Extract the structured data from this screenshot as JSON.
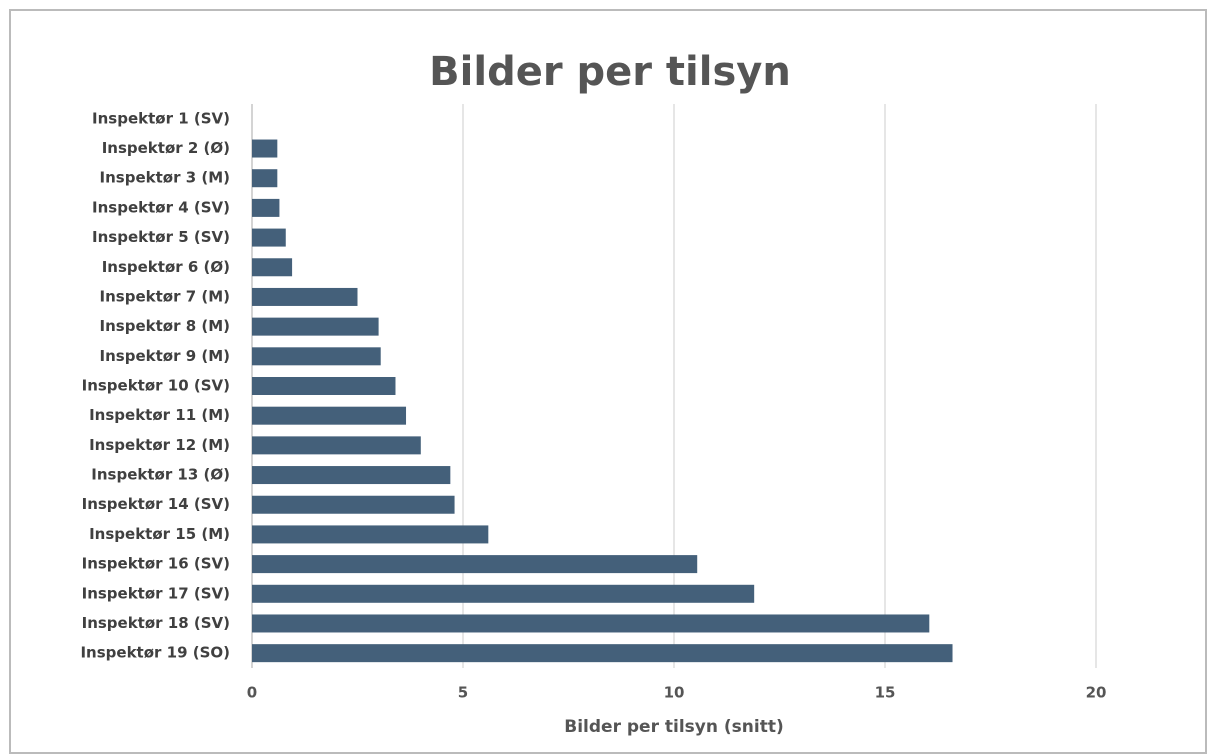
{
  "chart_data": {
    "type": "bar",
    "orientation": "horizontal",
    "title": "Bilder per tilsyn",
    "x_label": "Bilder per tilsyn (snitt)",
    "categories": [
      "Inspektør 1 (SV)",
      "Inspektør 2 (Ø)",
      "Inspektør 3 (M)",
      "Inspektør 4 (SV)",
      "Inspektør 5 (SV)",
      "Inspektør 6 (Ø)",
      "Inspektør 7 (M)",
      "Inspektør 8 (M)",
      "Inspektør 9 (M)",
      "Inspektør 10 (SV)",
      "Inspektør 11 (M)",
      "Inspektør 12 (M)",
      "Inspektør 13 (Ø)",
      "Inspektør 14 (SV)",
      "Inspektør 15 (M)",
      "Inspektør 16 (SV)",
      "Inspektør 17 (SV)",
      "Inspektør 18 (SV)",
      "Inspektør 19 (SO)"
    ],
    "values": [
      0,
      0.6,
      0.6,
      0.65,
      0.8,
      0.95,
      2.5,
      3.0,
      3.05,
      3.4,
      3.65,
      4.0,
      4.7,
      4.8,
      5.6,
      10.55,
      11.9,
      16.05,
      16.6
    ],
    "color": "#44607a",
    "xlim": [
      0,
      20
    ],
    "xticks": [
      0,
      5,
      10,
      15,
      20
    ],
    "grid": true
  }
}
